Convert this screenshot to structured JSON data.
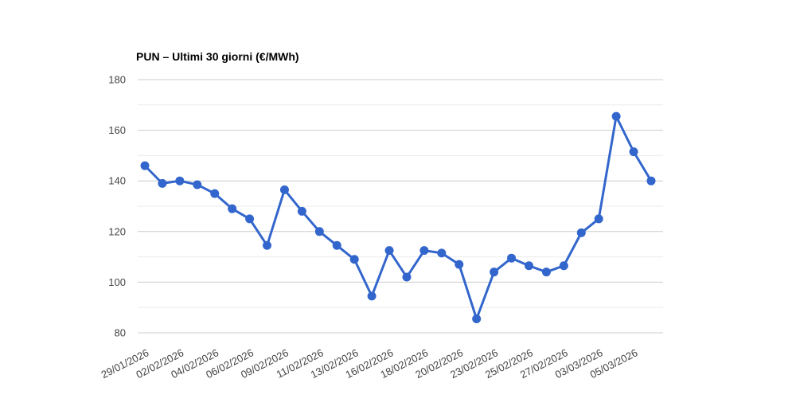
{
  "chart_data": {
    "type": "line",
    "title": "PUN – Ultimi 30 giorni (€/MWh)",
    "unit": "€/MWh",
    "x_tick_labels": [
      "29/01/2026",
      "02/02/2026",
      "04/02/2026",
      "06/02/2026",
      "09/02/2026",
      "11/02/2026",
      "13/02/2026",
      "16/02/2026",
      "18/02/2026",
      "20/02/2026",
      "23/02/2026",
      "25/02/2026",
      "27/02/2026",
      "03/03/2026",
      "05/03/2026"
    ],
    "x_label_every_n_points": 2,
    "num_points": 30,
    "values": [
      146,
      139,
      140,
      138.5,
      135,
      129,
      125,
      114.5,
      136.5,
      128,
      120,
      114.5,
      109,
      94.5,
      112.5,
      102,
      112.5,
      111.5,
      107,
      85.5,
      104,
      109.5,
      106.5,
      104,
      106.5,
      119.5,
      125,
      165.5,
      151.5,
      140
    ],
    "ylim": [
      80,
      180
    ],
    "y_major_ticks": [
      180,
      160,
      140,
      120,
      100,
      80
    ],
    "y_minor_ticks": [
      170,
      150,
      130,
      110,
      90
    ],
    "grid": "on",
    "legend": "none",
    "colors": {
      "series": "#3366cc",
      "grid_major": "#cccccc",
      "grid_minor": "#ebebeb",
      "tick_label": "#444444",
      "title": "#000000",
      "background": "#ffffff"
    }
  }
}
